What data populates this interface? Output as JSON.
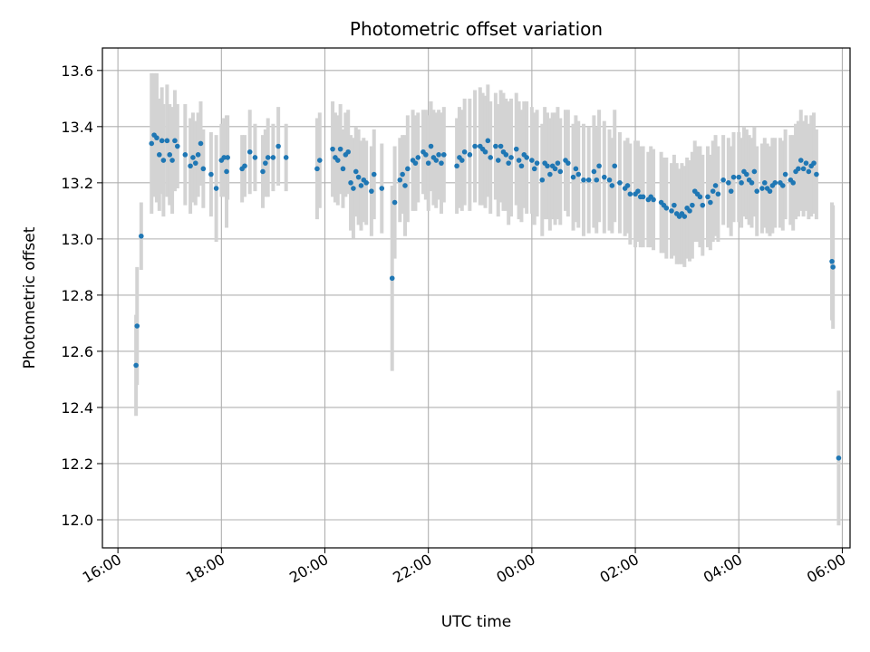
{
  "chart_data": {
    "type": "scatter",
    "title": "Photometric offset variation",
    "xlabel": "UTC time",
    "ylabel": "Photometric offset",
    "x_ticks": [
      "16:00",
      "18:00",
      "20:00",
      "22:00",
      "00:00",
      "02:00",
      "04:00",
      "06:00"
    ],
    "y_ticks": [
      "12.0",
      "12.2",
      "12.4",
      "12.6",
      "12.8",
      "13.0",
      "13.2",
      "13.4",
      "13.6"
    ],
    "x_range_hours": [
      15.7,
      30.15
    ],
    "ylim": [
      11.9,
      13.68
    ],
    "grid": true,
    "legend": "none",
    "colors": {
      "point": "#1f77b4",
      "errorbar": "#d3d3d3",
      "grid": "#b0b0b0"
    },
    "series": [
      {
        "marker": "point",
        "points": [
          [
            16.35,
            12.55,
            0.18
          ],
          [
            16.37,
            12.69,
            0.21
          ],
          [
            16.45,
            13.01,
            0.12
          ],
          [
            16.65,
            13.34,
            0.25
          ],
          [
            16.7,
            13.37,
            0.22
          ],
          [
            16.75,
            13.36,
            0.23
          ],
          [
            16.8,
            13.3,
            0.2
          ],
          [
            16.85,
            13.35,
            0.19
          ],
          [
            16.88,
            13.28,
            0.2
          ],
          [
            16.95,
            13.35,
            0.2
          ],
          [
            17.0,
            13.3,
            0.18
          ],
          [
            17.05,
            13.28,
            0.19
          ],
          [
            17.1,
            13.35,
            0.18
          ],
          [
            17.15,
            13.33,
            0.15
          ],
          [
            17.3,
            13.3,
            0.18
          ],
          [
            17.4,
            13.26,
            0.17
          ],
          [
            17.45,
            13.29,
            0.16
          ],
          [
            17.5,
            13.27,
            0.15
          ],
          [
            17.55,
            13.3,
            0.15
          ],
          [
            17.6,
            13.34,
            0.15
          ],
          [
            17.65,
            13.25,
            0.14
          ],
          [
            17.8,
            13.23,
            0.15
          ],
          [
            17.9,
            13.18,
            0.19
          ],
          [
            18.0,
            13.28,
            0.13
          ],
          [
            18.05,
            13.29,
            0.14
          ],
          [
            18.1,
            13.24,
            0.2
          ],
          [
            18.12,
            13.29,
            0.15
          ],
          [
            18.4,
            13.25,
            0.12
          ],
          [
            18.45,
            13.26,
            0.11
          ],
          [
            18.55,
            13.31,
            0.15
          ],
          [
            18.65,
            13.29,
            0.12
          ],
          [
            18.8,
            13.24,
            0.13
          ],
          [
            18.85,
            13.27,
            0.12
          ],
          [
            18.9,
            13.29,
            0.14
          ],
          [
            19.0,
            13.29,
            0.12
          ],
          [
            19.1,
            13.33,
            0.14
          ],
          [
            19.25,
            13.29,
            0.12
          ],
          [
            19.85,
            13.25,
            0.18
          ],
          [
            19.9,
            13.28,
            0.17
          ],
          [
            20.15,
            13.32,
            0.17
          ],
          [
            20.2,
            13.29,
            0.16
          ],
          [
            20.25,
            13.28,
            0.16
          ],
          [
            20.3,
            13.32,
            0.16
          ],
          [
            20.35,
            13.25,
            0.14
          ],
          [
            20.4,
            13.3,
            0.15
          ],
          [
            20.45,
            13.31,
            0.15
          ],
          [
            20.5,
            13.2,
            0.17
          ],
          [
            20.55,
            13.18,
            0.18
          ],
          [
            20.6,
            13.24,
            0.16
          ],
          [
            20.65,
            13.22,
            0.17
          ],
          [
            20.7,
            13.19,
            0.16
          ],
          [
            20.75,
            13.21,
            0.15
          ],
          [
            20.8,
            13.2,
            0.15
          ],
          [
            20.9,
            13.17,
            0.16
          ],
          [
            20.95,
            13.23,
            0.16
          ],
          [
            21.1,
            13.18,
            0.16
          ],
          [
            21.3,
            12.86,
            0.33
          ],
          [
            21.35,
            13.13,
            0.2
          ],
          [
            21.45,
            13.21,
            0.15
          ],
          [
            21.5,
            13.23,
            0.14
          ],
          [
            21.55,
            13.19,
            0.18
          ],
          [
            21.6,
            13.25,
            0.19
          ],
          [
            21.7,
            13.28,
            0.18
          ],
          [
            21.75,
            13.27,
            0.17
          ],
          [
            21.8,
            13.29,
            0.16
          ],
          [
            21.9,
            13.31,
            0.15
          ],
          [
            21.95,
            13.3,
            0.16
          ],
          [
            22.0,
            13.27,
            0.17
          ],
          [
            22.05,
            13.33,
            0.16
          ],
          [
            22.1,
            13.29,
            0.17
          ],
          [
            22.15,
            13.28,
            0.17
          ],
          [
            22.2,
            13.3,
            0.16
          ],
          [
            22.25,
            13.27,
            0.18
          ],
          [
            22.3,
            13.3,
            0.17
          ],
          [
            22.55,
            13.26,
            0.17
          ],
          [
            22.6,
            13.29,
            0.18
          ],
          [
            22.65,
            13.28,
            0.18
          ],
          [
            22.7,
            13.31,
            0.19
          ],
          [
            22.8,
            13.3,
            0.2
          ],
          [
            22.9,
            13.33,
            0.2
          ],
          [
            23.0,
            13.33,
            0.21
          ],
          [
            23.05,
            13.32,
            0.2
          ],
          [
            23.1,
            13.31,
            0.2
          ],
          [
            23.15,
            13.35,
            0.2
          ],
          [
            23.2,
            13.29,
            0.2
          ],
          [
            23.3,
            13.33,
            0.19
          ],
          [
            23.35,
            13.28,
            0.2
          ],
          [
            23.4,
            13.33,
            0.2
          ],
          [
            23.45,
            13.31,
            0.21
          ],
          [
            23.5,
            13.3,
            0.2
          ],
          [
            23.55,
            13.27,
            0.22
          ],
          [
            23.6,
            13.29,
            0.21
          ],
          [
            23.7,
            13.32,
            0.2
          ],
          [
            23.75,
            13.28,
            0.21
          ],
          [
            23.8,
            13.26,
            0.2
          ],
          [
            23.85,
            13.3,
            0.19
          ],
          [
            23.9,
            13.29,
            0.2
          ],
          [
            24.0,
            13.28,
            0.19
          ],
          [
            24.05,
            13.25,
            0.2
          ],
          [
            24.1,
            13.27,
            0.19
          ],
          [
            24.2,
            13.21,
            0.2
          ],
          [
            24.25,
            13.27,
            0.2
          ],
          [
            24.3,
            13.26,
            0.19
          ],
          [
            24.35,
            13.23,
            0.2
          ],
          [
            24.4,
            13.26,
            0.19
          ],
          [
            24.45,
            13.25,
            0.2
          ],
          [
            24.5,
            13.27,
            0.2
          ],
          [
            24.55,
            13.24,
            0.19
          ],
          [
            24.65,
            13.28,
            0.18
          ],
          [
            24.7,
            13.27,
            0.19
          ],
          [
            24.8,
            13.22,
            0.19
          ],
          [
            24.85,
            13.25,
            0.19
          ],
          [
            24.9,
            13.23,
            0.19
          ],
          [
            25.0,
            13.21,
            0.2
          ],
          [
            25.1,
            13.21,
            0.19
          ],
          [
            25.2,
            13.24,
            0.2
          ],
          [
            25.25,
            13.21,
            0.19
          ],
          [
            25.3,
            13.26,
            0.2
          ],
          [
            25.4,
            13.22,
            0.2
          ],
          [
            25.5,
            13.21,
            0.18
          ],
          [
            25.55,
            13.19,
            0.17
          ],
          [
            25.6,
            13.26,
            0.2
          ],
          [
            25.7,
            13.2,
            0.18
          ],
          [
            25.8,
            13.18,
            0.17
          ],
          [
            25.85,
            13.19,
            0.17
          ],
          [
            25.9,
            13.16,
            0.18
          ],
          [
            26.0,
            13.16,
            0.19
          ],
          [
            26.05,
            13.17,
            0.18
          ],
          [
            26.1,
            13.15,
            0.18
          ],
          [
            26.15,
            13.15,
            0.18
          ],
          [
            26.25,
            13.14,
            0.17
          ],
          [
            26.3,
            13.15,
            0.18
          ],
          [
            26.35,
            13.14,
            0.18
          ],
          [
            26.5,
            13.13,
            0.18
          ],
          [
            26.55,
            13.12,
            0.17
          ],
          [
            26.6,
            13.11,
            0.18
          ],
          [
            26.7,
            13.1,
            0.17
          ],
          [
            26.75,
            13.12,
            0.18
          ],
          [
            26.8,
            13.09,
            0.18
          ],
          [
            26.85,
            13.08,
            0.17
          ],
          [
            26.9,
            13.09,
            0.18
          ],
          [
            26.95,
            13.08,
            0.18
          ],
          [
            27.0,
            13.11,
            0.18
          ],
          [
            27.05,
            13.1,
            0.18
          ],
          [
            27.1,
            13.12,
            0.19
          ],
          [
            27.15,
            13.17,
            0.18
          ],
          [
            27.2,
            13.16,
            0.17
          ],
          [
            27.25,
            13.15,
            0.18
          ],
          [
            27.3,
            13.12,
            0.18
          ],
          [
            27.4,
            13.15,
            0.18
          ],
          [
            27.45,
            13.13,
            0.17
          ],
          [
            27.5,
            13.17,
            0.18
          ],
          [
            27.55,
            13.19,
            0.18
          ],
          [
            27.6,
            13.16,
            0.17
          ],
          [
            27.7,
            13.21,
            0.16
          ],
          [
            27.8,
            13.2,
            0.16
          ],
          [
            27.85,
            13.17,
            0.16
          ],
          [
            27.9,
            13.22,
            0.16
          ],
          [
            28.0,
            13.22,
            0.16
          ],
          [
            28.05,
            13.2,
            0.16
          ],
          [
            28.1,
            13.24,
            0.16
          ],
          [
            28.15,
            13.23,
            0.16
          ],
          [
            28.2,
            13.21,
            0.16
          ],
          [
            28.25,
            13.2,
            0.16
          ],
          [
            28.3,
            13.24,
            0.16
          ],
          [
            28.35,
            13.17,
            0.16
          ],
          [
            28.45,
            13.18,
            0.16
          ],
          [
            28.5,
            13.2,
            0.16
          ],
          [
            28.55,
            13.18,
            0.16
          ],
          [
            28.6,
            13.17,
            0.16
          ],
          [
            28.65,
            13.19,
            0.17
          ],
          [
            28.7,
            13.2,
            0.16
          ],
          [
            28.8,
            13.2,
            0.16
          ],
          [
            28.85,
            13.19,
            0.16
          ],
          [
            28.9,
            13.23,
            0.16
          ],
          [
            29.0,
            13.21,
            0.16
          ],
          [
            29.05,
            13.2,
            0.17
          ],
          [
            29.1,
            13.24,
            0.17
          ],
          [
            29.15,
            13.25,
            0.17
          ],
          [
            29.2,
            13.28,
            0.18
          ],
          [
            29.25,
            13.25,
            0.17
          ],
          [
            29.3,
            13.27,
            0.17
          ],
          [
            29.35,
            13.24,
            0.17
          ],
          [
            29.4,
            13.26,
            0.18
          ],
          [
            29.45,
            13.27,
            0.18
          ],
          [
            29.5,
            13.23,
            0.16
          ],
          [
            29.8,
            12.92,
            0.21
          ],
          [
            29.82,
            12.9,
            0.22
          ],
          [
            29.93,
            12.22,
            0.24
          ]
        ]
      }
    ]
  }
}
